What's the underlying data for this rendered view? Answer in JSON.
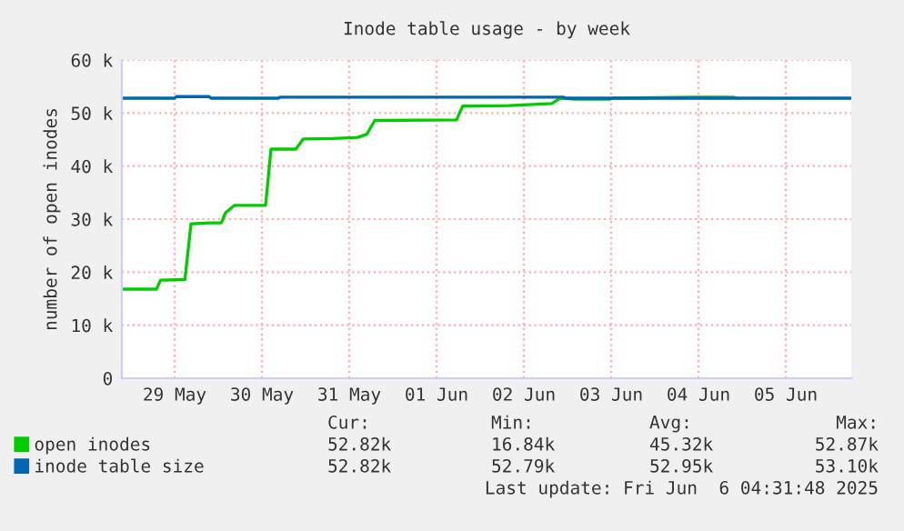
{
  "chart_data": {
    "type": "line",
    "title": "Inode table usage - by week",
    "ylabel": "number of open inodes",
    "xlim": [
      "2025-05-28T21:30",
      "2025-06-06T06:00"
    ],
    "xticks": [
      {
        "value": "2025-05-29T12:00",
        "label": "29 May"
      },
      {
        "value": "2025-05-30T12:00",
        "label": "30 May"
      },
      {
        "value": "2025-05-31T12:00",
        "label": "31 May"
      },
      {
        "value": "2025-06-01T12:00",
        "label": "01 Jun"
      },
      {
        "value": "2025-06-02T12:00",
        "label": "02 Jun"
      },
      {
        "value": "2025-06-03T12:00",
        "label": "03 Jun"
      },
      {
        "value": "2025-06-04T12:00",
        "label": "04 Jun"
      },
      {
        "value": "2025-06-05T12:00",
        "label": "05 Jun"
      }
    ],
    "ylim": [
      0,
      60000
    ],
    "yticks": [
      0,
      {
        "value": 10000,
        "label": "10 k"
      },
      {
        "value": 20000,
        "label": "20 k"
      },
      {
        "value": 30000,
        "label": "30 k"
      },
      {
        "value": 40000,
        "label": "40 k"
      },
      {
        "value": 50000,
        "label": "50 k"
      },
      {
        "value": 60000,
        "label": "60 k"
      }
    ],
    "grid": true,
    "legend": "bottom",
    "marker": "none",
    "line_style": "solid",
    "series": [
      {
        "name": "open inodes",
        "color": "#00cc00",
        "x": [
          "2025-05-28T21:50",
          "2025-05-29T05:40",
          "2025-05-29T07:00",
          "2025-05-29T08:10",
          "2025-05-29T14:50",
          "2025-05-29T16:30",
          "2025-05-29T21:30",
          "2025-05-30T00:50",
          "2025-05-30T02:00",
          "2025-05-30T04:30",
          "2025-05-30T13:00",
          "2025-05-30T14:30",
          "2025-05-30T21:20",
          "2025-05-30T23:20",
          "2025-05-31T07:20",
          "2025-05-31T14:20",
          "2025-05-31T16:50",
          "2025-05-31T19:00",
          "2025-06-01T17:30",
          "2025-06-01T19:10",
          "2025-06-02T08:00",
          "2025-06-02T19:40",
          "2025-06-02T22:00",
          "2025-06-03T02:20",
          "2025-06-03T11:30",
          "2025-06-03T12:30",
          "2025-06-04T12:00",
          "2025-06-04T21:30",
          "2025-06-04T22:30"
        ],
        "values": [
          16800,
          16800,
          16800,
          18500,
          18600,
          29100,
          29300,
          29300,
          31200,
          32600,
          32600,
          43200,
          43200,
          45100,
          45200,
          45400,
          46000,
          48600,
          48700,
          51300,
          51400,
          51800,
          52800,
          52600,
          52600,
          52800,
          53000,
          53000,
          52800
        ]
      },
      {
        "name": "inode table size",
        "color": "#0066b3",
        "x": [
          "2025-05-28T21:50",
          "2025-05-29T12:00",
          "2025-05-29T12:30",
          "2025-05-29T21:30",
          "2025-05-29T22:00",
          "2025-05-30T16:30",
          "2025-05-30T17:00",
          "2025-06-02T23:00",
          "2025-06-02T23:30",
          "2025-06-06T06:00"
        ],
        "values": [
          52800,
          52800,
          53100,
          53100,
          52800,
          52800,
          53000,
          53000,
          52800,
          52800
        ]
      }
    ],
    "annotations": [
      "Cur:",
      "Min:",
      "Avg:",
      "Max:",
      "52.82k",
      "16.84k",
      "45.32k",
      "52.87k",
      "52.82k",
      "52.79k",
      "52.95k",
      "53.10k",
      "Last update: Fri Jun  6 04:31:48 2025"
    ]
  }
}
